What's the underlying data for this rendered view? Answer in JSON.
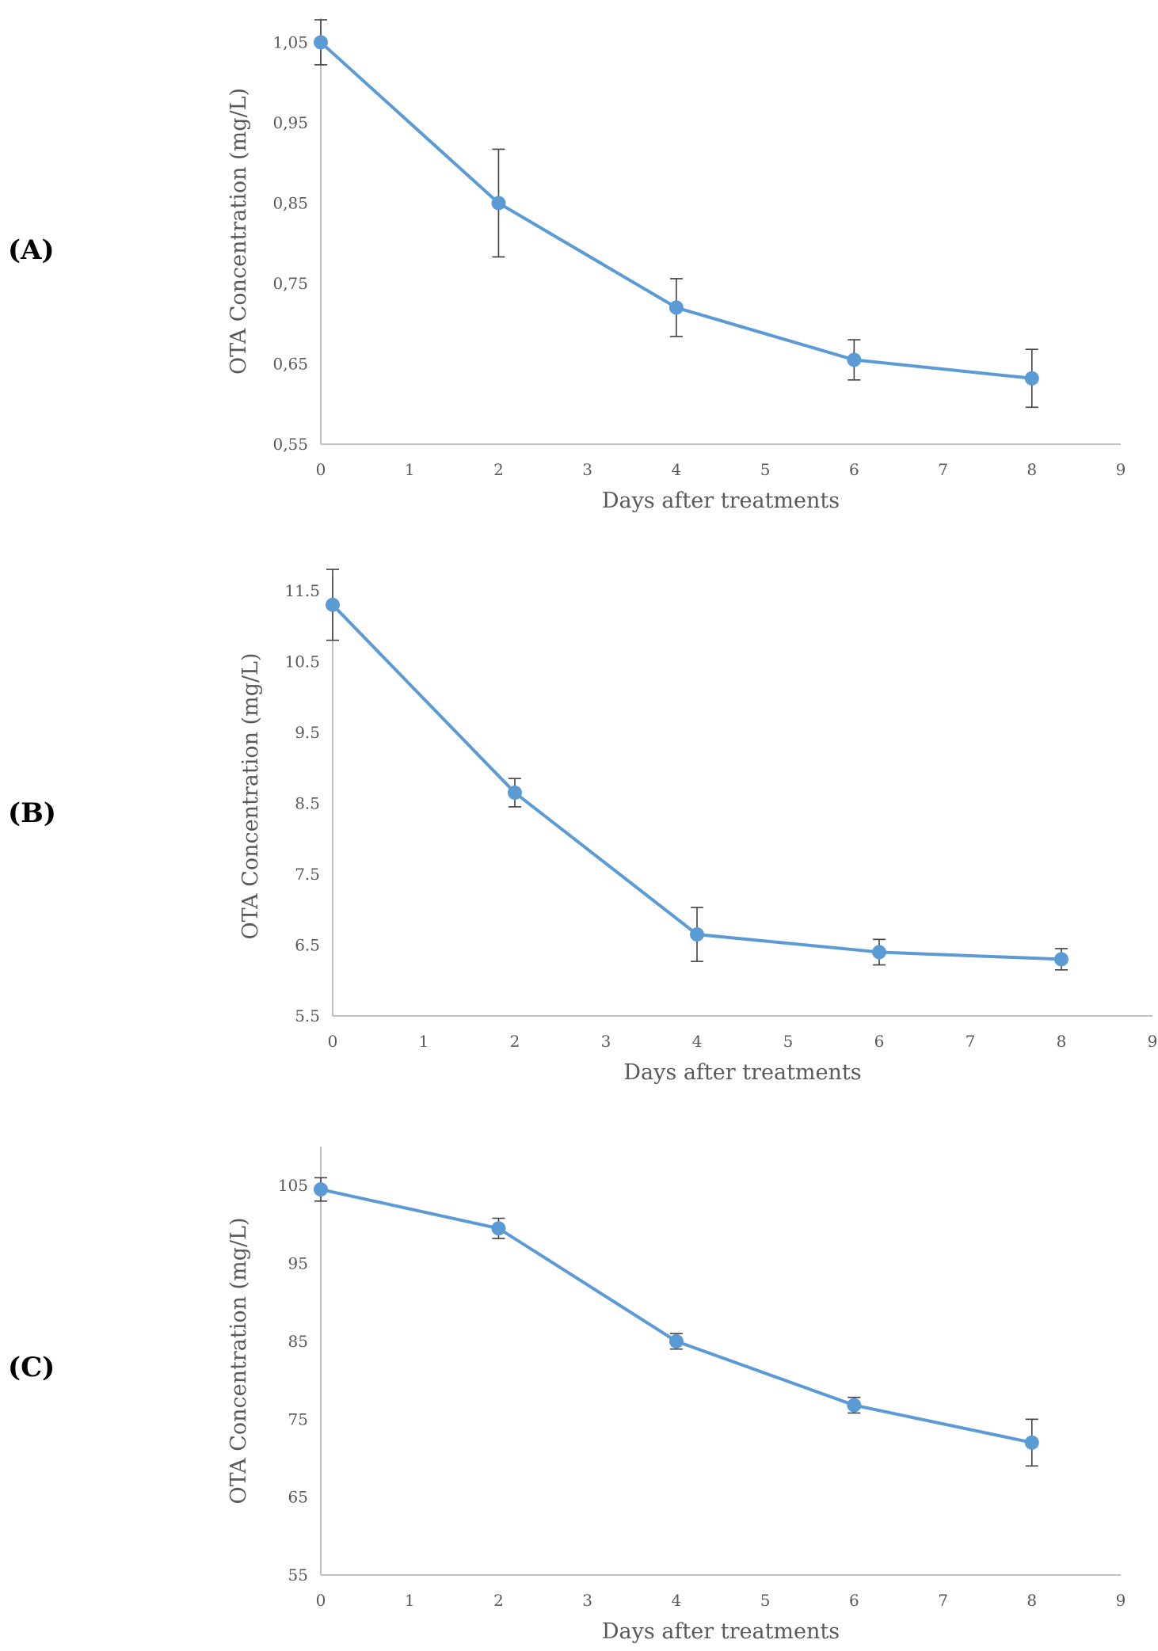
{
  "panels": [
    {
      "label": "(A)"
    },
    {
      "label": "(B)"
    },
    {
      "label": "(C)"
    }
  ],
  "colors": {
    "series": "#5b9bd5",
    "axis": "#bfbfbf",
    "error_bar": "#404040",
    "tick_text": "#595959"
  },
  "chart_data": [
    {
      "type": "line",
      "panel": "(A)",
      "xlabel": "Days after treatments",
      "ylabel": "OTA Concentration (mg/L)",
      "xlim": [
        0,
        9
      ],
      "ylim": [
        0.55,
        1.08
      ],
      "x_ticks": [
        "0",
        "1",
        "2",
        "3",
        "4",
        "5",
        "6",
        "7",
        "8",
        "9"
      ],
      "y_ticks": [
        {
          "value": 0.55,
          "label": "0,55"
        },
        {
          "value": 0.65,
          "label": "0,65"
        },
        {
          "value": 0.75,
          "label": "0,75"
        },
        {
          "value": 0.85,
          "label": "0,85"
        },
        {
          "value": 0.95,
          "label": "0,95"
        },
        {
          "value": 1.05,
          "label": "1,05"
        }
      ],
      "grid": false,
      "series": [
        {
          "x": [
            0,
            2,
            4,
            6,
            8
          ],
          "y": [
            1.05,
            0.85,
            0.72,
            0.655,
            0.632
          ],
          "error": [
            0.028,
            0.067,
            0.036,
            0.025,
            0.036
          ]
        }
      ]
    },
    {
      "type": "line",
      "panel": "(B)",
      "xlabel": "Days after treatments",
      "ylabel": "OTA Concentration (mg/L)",
      "xlim": [
        0,
        9
      ],
      "ylim": [
        5.5,
        11.7
      ],
      "x_ticks": [
        "0",
        "1",
        "2",
        "3",
        "4",
        "5",
        "6",
        "7",
        "8",
        "9"
      ],
      "y_ticks": [
        {
          "value": 5.5,
          "label": "5.5"
        },
        {
          "value": 6.5,
          "label": "6.5"
        },
        {
          "value": 7.5,
          "label": "7.5"
        },
        {
          "value": 8.5,
          "label": "8.5"
        },
        {
          "value": 9.5,
          "label": "9.5"
        },
        {
          "value": 10.5,
          "label": "10.5"
        },
        {
          "value": 11.5,
          "label": "11.5"
        }
      ],
      "grid": false,
      "series": [
        {
          "x": [
            0,
            2,
            4,
            6,
            8
          ],
          "y": [
            11.3,
            8.65,
            6.65,
            6.4,
            6.3
          ],
          "error": [
            0.5,
            0.2,
            0.38,
            0.18,
            0.15
          ]
        }
      ]
    },
    {
      "type": "line",
      "panel": "(C)",
      "xlabel": "Days after treatments",
      "ylabel": "OTA Concentration (mg/L)",
      "xlim": [
        0,
        9
      ],
      "ylim": [
        55,
        110
      ],
      "x_ticks": [
        "0",
        "1",
        "2",
        "3",
        "4",
        "5",
        "6",
        "7",
        "8",
        "9"
      ],
      "y_ticks": [
        {
          "value": 55,
          "label": "55"
        },
        {
          "value": 65,
          "label": "65"
        },
        {
          "value": 75,
          "label": "75"
        },
        {
          "value": 85,
          "label": "85"
        },
        {
          "value": 95,
          "label": "95"
        },
        {
          "value": 105,
          "label": "105"
        }
      ],
      "grid": false,
      "series": [
        {
          "x": [
            0,
            2,
            4,
            6,
            8
          ],
          "y": [
            104.5,
            99.5,
            85.0,
            76.8,
            72.0
          ],
          "error": [
            1.5,
            1.3,
            1.0,
            1.0,
            3.0
          ]
        }
      ]
    }
  ]
}
